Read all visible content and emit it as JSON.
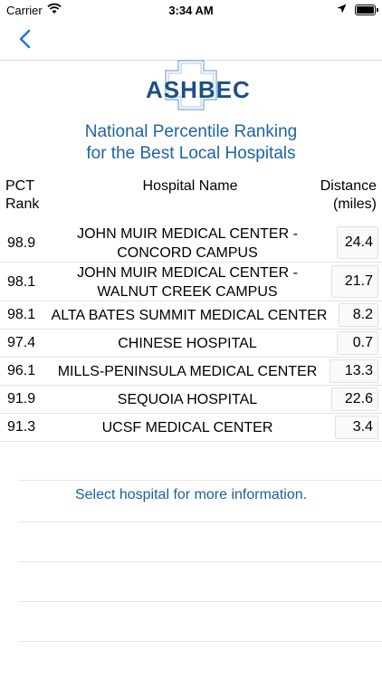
{
  "status_bar": {
    "carrier": "Carrier",
    "time": "3:34 AM"
  },
  "logo": {
    "text": "ASHBEC"
  },
  "title": {
    "line1": "National Percentile Ranking",
    "line2": "for the Best Local Hospitals"
  },
  "columns": {
    "pct_line1": "PCT",
    "pct_line2": "Rank",
    "name": "Hospital Name",
    "dist_line1": "Distance",
    "dist_line2": "(miles)"
  },
  "hospitals": [
    {
      "rank": "98.9",
      "name_line1": "JOHN MUIR MEDICAL CENTER -",
      "name_line2": "CONCORD CAMPUS",
      "distance": "24.4"
    },
    {
      "rank": "98.1",
      "name_line1": "JOHN MUIR MEDICAL CENTER -",
      "name_line2": "WALNUT CREEK CAMPUS",
      "distance": "21.7"
    },
    {
      "rank": "98.1",
      "name_line1": "ALTA BATES SUMMIT MEDICAL CENTER",
      "name_line2": "",
      "distance": "8.2"
    },
    {
      "rank": "97.4",
      "name_line1": "CHINESE HOSPITAL",
      "name_line2": "",
      "distance": "0.7"
    },
    {
      "rank": "96.1",
      "name_line1": "MILLS-PENINSULA MEDICAL CENTER",
      "name_line2": "",
      "distance": "13.3"
    },
    {
      "rank": "91.9",
      "name_line1": "SEQUOIA HOSPITAL",
      "name_line2": "",
      "distance": "22.6"
    },
    {
      "rank": "91.3",
      "name_line1": "UCSF MEDICAL CENTER",
      "name_line2": "",
      "distance": "3.4"
    }
  ],
  "hint": "Select hospital for more information.",
  "colors": {
    "accent": "#1a7be8",
    "title": "#1d64a5",
    "logo": "#1d4f84"
  },
  "icons": {
    "back": "chevron-left-icon",
    "wifi": "wifi-icon",
    "location": "location-arrow-icon",
    "battery": "battery-icon"
  }
}
